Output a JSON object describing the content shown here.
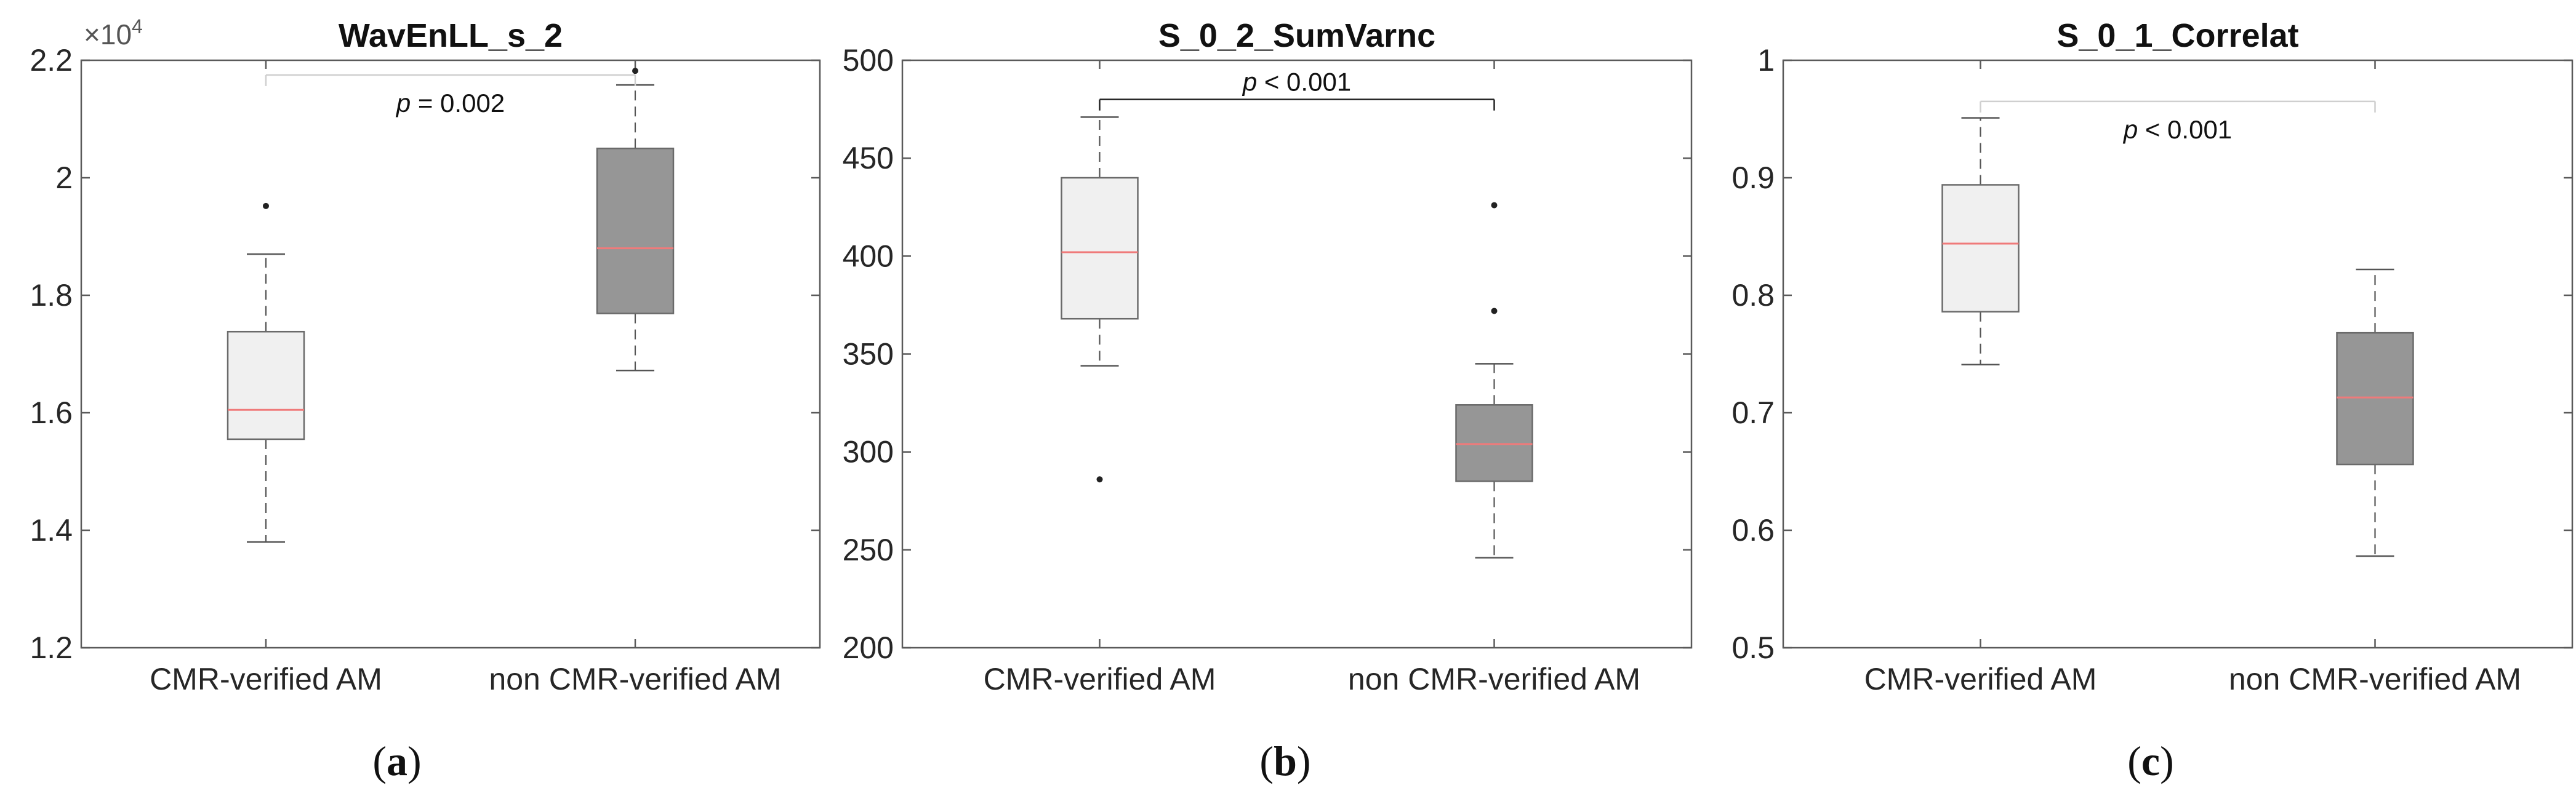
{
  "figure": {
    "panels": [
      {
        "label_open": "(",
        "label_letter": "a",
        "label_close": ")"
      },
      {
        "label_open": "(",
        "label_letter": "b",
        "label_close": ")"
      },
      {
        "label_open": "(",
        "label_letter": "c",
        "label_close": ")"
      }
    ]
  },
  "colors": {
    "box_light": "#f0f0f0",
    "box_dark": "#969696",
    "median": "#ef7a7a",
    "whisker": "#555555",
    "axis": "#5a5a5a",
    "text": "#262626",
    "bracket_dark": "#222222",
    "bracket_light": "#cfcfcf"
  },
  "chart_data": [
    {
      "type": "boxplot",
      "title": "WavEnLL_s_2",
      "xlabel": "",
      "ylabel": "",
      "categories": [
        "CMR-verified AM",
        "non CMR-verified AM"
      ],
      "ylim": [
        12000,
        22000
      ],
      "yticks": [
        12000,
        14000,
        16000,
        18000,
        20000,
        22000
      ],
      "ytick_labels": [
        "1.2",
        "1.4",
        "1.6",
        "1.8",
        "2",
        "2.2"
      ],
      "axis_exponent": {
        "base": "×10",
        "power": "4"
      },
      "boxes": [
        {
          "whisker_low": 13800,
          "q1": 15550,
          "median": 16050,
          "q3": 17380,
          "whisker_high": 18700,
          "outliers": [
            19520
          ],
          "shade": "light"
        },
        {
          "whisker_low": 16720,
          "q1": 17690,
          "median": 18800,
          "q3": 20500,
          "whisker_high": 21580,
          "outliers": [
            21820
          ],
          "shade": "dark"
        }
      ],
      "annotation": {
        "italic": "p",
        "rest": " = 0.002",
        "y": 21750,
        "style": "light"
      }
    },
    {
      "type": "boxplot",
      "title": "S_0_2_SumVarnc",
      "xlabel": "",
      "ylabel": "",
      "categories": [
        "CMR-verified AM",
        "non CMR-verified AM"
      ],
      "ylim": [
        200,
        500
      ],
      "yticks": [
        200,
        250,
        300,
        350,
        400,
        450,
        500
      ],
      "ytick_labels": [
        "200",
        "250",
        "300",
        "350",
        "400",
        "450",
        "500"
      ],
      "boxes": [
        {
          "whisker_low": 344,
          "q1": 368,
          "median": 402,
          "q3": 440,
          "whisker_high": 471,
          "outliers": [
            286
          ],
          "shade": "light"
        },
        {
          "whisker_low": 246,
          "q1": 285,
          "median": 304,
          "q3": 324,
          "whisker_high": 345,
          "outliers": [
            372,
            426
          ],
          "shade": "dark"
        }
      ],
      "annotation": {
        "italic": "p",
        "rest": " < 0.001",
        "y": 480,
        "style": "dark"
      }
    },
    {
      "type": "boxplot",
      "title": "S_0_1_Correlat",
      "xlabel": "",
      "ylabel": "",
      "categories": [
        "CMR-verified AM",
        "non CMR-verified AM"
      ],
      "ylim": [
        0.5,
        1.0
      ],
      "yticks": [
        0.5,
        0.6,
        0.7,
        0.8,
        0.9,
        1.0
      ],
      "ytick_labels": [
        "0.5",
        "0.6",
        "0.7",
        "0.8",
        "0.9",
        "1"
      ],
      "boxes": [
        {
          "whisker_low": 0.741,
          "q1": 0.786,
          "median": 0.844,
          "q3": 0.894,
          "whisker_high": 0.951,
          "outliers": [],
          "shade": "light"
        },
        {
          "whisker_low": 0.578,
          "q1": 0.656,
          "median": 0.713,
          "q3": 0.768,
          "whisker_high": 0.822,
          "outliers": [],
          "shade": "dark"
        }
      ],
      "annotation": {
        "italic": "p",
        "rest": " < 0.001",
        "y": 0.965,
        "style": "light"
      }
    }
  ]
}
